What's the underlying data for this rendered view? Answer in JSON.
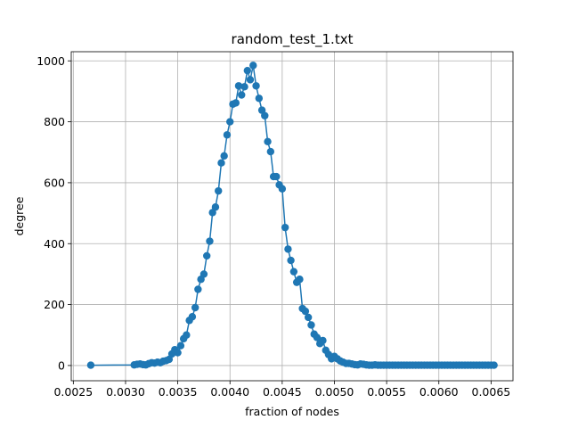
{
  "chart_data": {
    "type": "line",
    "title": "random_test_1.txt",
    "xlabel": "fraction of nodes",
    "ylabel": "degree",
    "xlim": [
      0.00248,
      0.00671
    ],
    "ylim": [
      -50,
      1030
    ],
    "xticks": [
      0.0025,
      0.003,
      0.0035,
      0.004,
      0.0045,
      0.005,
      0.0055,
      0.006,
      0.0065
    ],
    "xtick_labels": [
      "0.0025",
      "0.0030",
      "0.0035",
      "0.0040",
      "0.0045",
      "0.0050",
      "0.0055",
      "0.0060",
      "0.0065"
    ],
    "yticks": [
      0,
      200,
      400,
      600,
      800,
      1000
    ],
    "ytick_labels": [
      "0",
      "200",
      "400",
      "600",
      "800",
      "1000"
    ],
    "grid": true,
    "series": [
      {
        "color": "#1f77b4",
        "marker": "circle",
        "points": [
          [
            0.002667,
            1
          ],
          [
            0.003083,
            2
          ],
          [
            0.003111,
            4
          ],
          [
            0.003139,
            5
          ],
          [
            0.003167,
            3
          ],
          [
            0.003194,
            2
          ],
          [
            0.003222,
            6
          ],
          [
            0.00325,
            9
          ],
          [
            0.003278,
            8
          ],
          [
            0.003306,
            11
          ],
          [
            0.003333,
            9
          ],
          [
            0.003361,
            14
          ],
          [
            0.003389,
            16
          ],
          [
            0.003417,
            20
          ],
          [
            0.003444,
            38
          ],
          [
            0.003472,
            52
          ],
          [
            0.0035,
            42
          ],
          [
            0.003528,
            65
          ],
          [
            0.003556,
            88
          ],
          [
            0.003583,
            100
          ],
          [
            0.003611,
            148
          ],
          [
            0.003639,
            160
          ],
          [
            0.003667,
            190
          ],
          [
            0.003694,
            250
          ],
          [
            0.003722,
            283
          ],
          [
            0.00375,
            300
          ],
          [
            0.003778,
            360
          ],
          [
            0.003806,
            408
          ],
          [
            0.003833,
            502
          ],
          [
            0.003861,
            520
          ],
          [
            0.003889,
            573
          ],
          [
            0.003917,
            665
          ],
          [
            0.003944,
            688
          ],
          [
            0.003972,
            757
          ],
          [
            0.004,
            800
          ],
          [
            0.004028,
            858
          ],
          [
            0.004056,
            862
          ],
          [
            0.004083,
            918
          ],
          [
            0.004111,
            888
          ],
          [
            0.004139,
            915
          ],
          [
            0.004167,
            968
          ],
          [
            0.004194,
            938
          ],
          [
            0.004222,
            985
          ],
          [
            0.00425,
            918
          ],
          [
            0.004278,
            877
          ],
          [
            0.004306,
            838
          ],
          [
            0.004333,
            820
          ],
          [
            0.004361,
            735
          ],
          [
            0.004389,
            702
          ],
          [
            0.004417,
            620
          ],
          [
            0.004444,
            620
          ],
          [
            0.004472,
            593
          ],
          [
            0.0045,
            580
          ],
          [
            0.004528,
            453
          ],
          [
            0.004556,
            382
          ],
          [
            0.004583,
            345
          ],
          [
            0.004611,
            308
          ],
          [
            0.004639,
            273
          ],
          [
            0.004667,
            283
          ],
          [
            0.004694,
            187
          ],
          [
            0.004722,
            178
          ],
          [
            0.00475,
            158
          ],
          [
            0.004778,
            133
          ],
          [
            0.004806,
            103
          ],
          [
            0.004833,
            92
          ],
          [
            0.004861,
            72
          ],
          [
            0.004889,
            82
          ],
          [
            0.004917,
            50
          ],
          [
            0.004944,
            36
          ],
          [
            0.004972,
            22
          ],
          [
            0.005,
            30
          ],
          [
            0.005028,
            22
          ],
          [
            0.005056,
            15
          ],
          [
            0.005083,
            11
          ],
          [
            0.005111,
            7
          ],
          [
            0.005139,
            7
          ],
          [
            0.005167,
            5
          ],
          [
            0.005194,
            3
          ],
          [
            0.005222,
            2
          ],
          [
            0.00525,
            5
          ],
          [
            0.005278,
            4
          ],
          [
            0.005306,
            2
          ],
          [
            0.005333,
            1
          ],
          [
            0.005361,
            1
          ],
          [
            0.005389,
            2
          ],
          [
            0.005417,
            1
          ],
          [
            0.005444,
            1
          ],
          [
            0.005472,
            1
          ],
          [
            0.0055,
            1
          ],
          [
            0.005528,
            1
          ],
          [
            0.005556,
            1
          ],
          [
            0.005583,
            1
          ],
          [
            0.005611,
            1
          ],
          [
            0.005639,
            1
          ],
          [
            0.005667,
            1
          ],
          [
            0.005694,
            1
          ],
          [
            0.005722,
            1
          ],
          [
            0.00575,
            1
          ],
          [
            0.005778,
            1
          ],
          [
            0.005806,
            1
          ],
          [
            0.005833,
            1
          ],
          [
            0.005861,
            1
          ],
          [
            0.005889,
            1
          ],
          [
            0.005917,
            1
          ],
          [
            0.005944,
            1
          ],
          [
            0.005972,
            1
          ],
          [
            0.006,
            1
          ],
          [
            0.006028,
            1
          ],
          [
            0.006056,
            1
          ],
          [
            0.006083,
            1
          ],
          [
            0.006111,
            1
          ],
          [
            0.006139,
            1
          ],
          [
            0.006167,
            1
          ],
          [
            0.006194,
            1
          ],
          [
            0.006222,
            1
          ],
          [
            0.00625,
            1
          ],
          [
            0.006278,
            1
          ],
          [
            0.006306,
            1
          ],
          [
            0.006333,
            1
          ],
          [
            0.006361,
            1
          ],
          [
            0.006389,
            1
          ],
          [
            0.006417,
            1
          ],
          [
            0.006444,
            1
          ],
          [
            0.006472,
            1
          ],
          [
            0.0065,
            1
          ],
          [
            0.006528,
            1
          ]
        ]
      }
    ]
  }
}
